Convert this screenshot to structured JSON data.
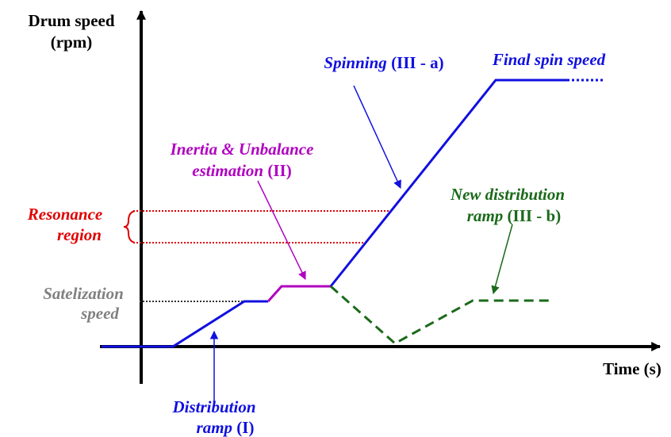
{
  "axes": {
    "y_label": [
      "Drum speed",
      "(rpm)"
    ],
    "x_label": "Time (s)"
  },
  "annotations": {
    "spinning": {
      "name": "Spinning",
      "phase": "(III - a)"
    },
    "final_spin": "Final spin speed",
    "inertia": {
      "line1": "Inertia & Unbalance",
      "name": "estimation",
      "phase": "(II)"
    },
    "new_distribution": {
      "line1": "New distribution",
      "name": "ramp",
      "phase": "(III - b)"
    },
    "resonance": [
      "Resonance",
      "region"
    ],
    "satelization": [
      "Satelization",
      "speed"
    ],
    "distribution": {
      "line1": "Distribution",
      "name": "ramp",
      "phase": "(I)"
    }
  }
}
